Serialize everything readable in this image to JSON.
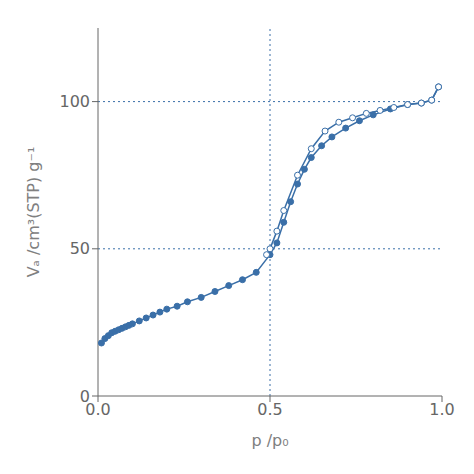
{
  "chart_data": {
    "type": "line",
    "xlabel": "p /p₀",
    "ylabel": "Vₐ /cm³(STP) g⁻¹",
    "xlim": [
      0,
      1.0
    ],
    "ylim": [
      0,
      125
    ],
    "xticks": [
      {
        "value": 0,
        "label": "0.0"
      },
      {
        "value": 0.5,
        "label": "0.5"
      },
      {
        "value": 1,
        "label": "1.0"
      }
    ],
    "yticks": [
      0,
      50,
      100
    ],
    "grid": false,
    "hlines": [
      50,
      100
    ],
    "vlines": [
      0.5
    ],
    "series": [
      {
        "color": "#3a6fa8",
        "marker": "circle",
        "x": [
          0.01,
          0.02,
          0.03,
          0.04,
          0.05,
          0.06,
          0.07,
          0.08,
          0.09,
          0.1,
          0.12,
          0.14,
          0.16,
          0.18,
          0.2,
          0.23,
          0.26,
          0.3,
          0.34,
          0.38,
          0.42,
          0.46,
          0.5,
          0.52,
          0.54,
          0.56,
          0.58,
          0.6,
          0.62,
          0.65,
          0.68,
          0.72,
          0.76,
          0.8,
          0.85,
          0.9,
          0.94,
          0.97,
          0.99
        ],
        "values": [
          18.0,
          19.5,
          20.5,
          21.5,
          22.0,
          22.5,
          23.0,
          23.5,
          24.0,
          24.5,
          25.5,
          26.5,
          27.5,
          28.5,
          29.5,
          30.5,
          32.0,
          33.5,
          35.5,
          37.5,
          39.5,
          42.0,
          48.0,
          52.0,
          59.0,
          66.0,
          72.0,
          77.0,
          81.0,
          85.0,
          88.0,
          91.0,
          93.5,
          95.5,
          97.5,
          99.0,
          99.5,
          100.5,
          105.0
        ]
      },
      {
        "color": "#3a6fa8",
        "marker": "open_circle",
        "x": [
          0.99,
          0.97,
          0.94,
          0.9,
          0.86,
          0.82,
          0.78,
          0.74,
          0.7,
          0.66,
          0.62,
          0.58,
          0.54,
          0.52,
          0.5,
          0.49
        ],
        "values": [
          105.0,
          100.5,
          99.5,
          99.0,
          98.0,
          97.0,
          96.0,
          94.5,
          93.0,
          90.0,
          84.0,
          75.0,
          63.0,
          56.0,
          50.0,
          48.0
        ]
      }
    ]
  }
}
